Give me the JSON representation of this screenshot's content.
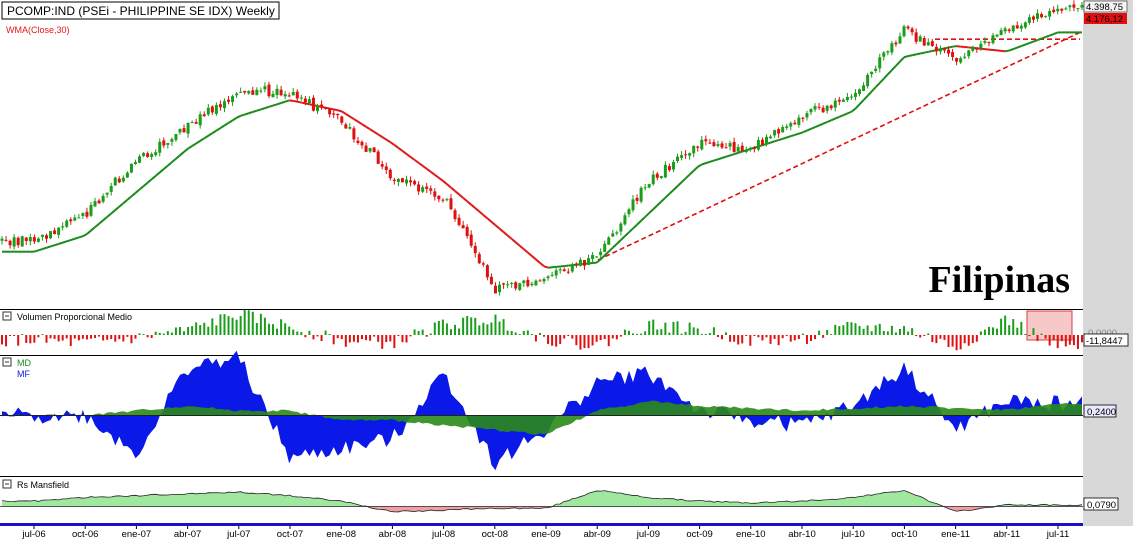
{
  "main_panel": {
    "title": "PCOMP:IND (PSEi - PHILIPPINE SE IDX) Weekly",
    "indicator_label": "WMA(Close,30)",
    "watermark": "Filipinas",
    "price_last": "4.398,75",
    "price_wma": "4.176,12"
  },
  "panels": {
    "volume": {
      "label": "Volumen Proporcional Medio",
      "value_top": "0,0000",
      "value": "-11,8447"
    },
    "mdmf": {
      "label_md": "MD",
      "label_mf": "MF",
      "value": "0,2400"
    },
    "rs": {
      "label": "Rs Mansfield",
      "value": "0,0790"
    }
  },
  "time_axis": [
    "jul-06",
    "oct-06",
    "ene-07",
    "abr-07",
    "jul-07",
    "oct-07",
    "ene-08",
    "abr-08",
    "jul-08",
    "oct-08",
    "ene-09",
    "abr-09",
    "jul-09",
    "oct-09",
    "ene-10",
    "abr-10",
    "jul-10",
    "oct-10",
    "ene-11",
    "abr-11",
    "jul-11"
  ],
  "colors": {
    "up_candle": "#1a9e1a",
    "down_candle": "#e01010",
    "wma_red": "#e01818",
    "wma_green": "#1a8a1a",
    "trendline": "#e01010",
    "md_fill": "#0a18e8",
    "mf_fill": "#2a8a1a",
    "rs_positive": "#a0e8a0",
    "rs_negative": "#f0a0a0",
    "axis_bar": "#1a10c8",
    "price_label_bg": "#e01010",
    "value_label_bg": "#e8e8ff"
  },
  "chart_data": [
    {
      "type": "candlestick",
      "series": [
        {
          "name": "PCOMP:IND",
          "x": [
            "jul-06",
            "oct-06",
            "ene-07",
            "abr-07",
            "jul-07",
            "oct-07",
            "ene-08",
            "abr-08",
            "jul-08",
            "oct-08",
            "ene-09",
            "abr-09",
            "jul-09",
            "oct-09",
            "ene-10",
            "abr-10",
            "jul-10",
            "oct-10",
            "ene-11",
            "abr-11",
            "jul-11"
          ],
          "values": [
            2250,
            2500,
            3000,
            3300,
            3650,
            3620,
            3350,
            2850,
            2650,
            1800,
            1900,
            2100,
            2800,
            3150,
            3100,
            3400,
            3600,
            4200,
            3900,
            4200,
            4398.75
          ]
        },
        {
          "name": "WMA(Close,30)",
          "x": [
            "jul-06",
            "oct-06",
            "ene-07",
            "abr-07",
            "jul-07",
            "oct-07",
            "ene-08",
            "abr-08",
            "jul-08",
            "oct-08",
            "ene-09",
            "abr-09",
            "jul-09",
            "oct-09",
            "ene-10",
            "abr-10",
            "jul-10",
            "oct-10",
            "ene-11",
            "abr-11",
            "jul-11"
          ],
          "values": [
            2150,
            2300,
            2700,
            3100,
            3400,
            3550,
            3450,
            3150,
            2800,
            2400,
            2000,
            2050,
            2500,
            2950,
            3100,
            3250,
            3450,
            3950,
            4050,
            4000,
            4176.12
          ]
        }
      ]
    },
    {
      "type": "bar",
      "title": "Volumen Proporcional Medio",
      "x": [
        "jul-06",
        "oct-06",
        "ene-07",
        "abr-07",
        "jul-07",
        "oct-07",
        "ene-08",
        "abr-08",
        "jul-08",
        "oct-08",
        "ene-09",
        "abr-09",
        "jul-09",
        "oct-09",
        "ene-10",
        "abr-10",
        "jul-10",
        "oct-10",
        "ene-11",
        "abr-11",
        "jul-11"
      ],
      "values": [
        -5,
        -8,
        -3,
        5,
        20,
        8,
        -6,
        -8,
        10,
        15,
        -4,
        -10,
        10,
        5,
        -6,
        -4,
        8,
        6,
        -12,
        15,
        -11.8447
      ]
    },
    {
      "type": "area",
      "series": [
        {
          "name": "MD",
          "x": [
            "jul-06",
            "oct-06",
            "ene-07",
            "abr-07",
            "jul-07",
            "oct-07",
            "ene-08",
            "abr-08",
            "jul-08",
            "oct-08",
            "ene-09",
            "abr-09",
            "jul-09",
            "oct-09",
            "ene-10",
            "abr-10",
            "jul-10",
            "oct-10",
            "ene-11",
            "abr-11",
            "jul-11"
          ],
          "values": [
            0,
            0,
            -0.8,
            1,
            1.2,
            -0.9,
            -0.7,
            -0.5,
            0.9,
            -1,
            -0.3,
            0.7,
            0.9,
            0.1,
            -0.1,
            -0.2,
            0.2,
            1,
            -0.3,
            0.3,
            0.24
          ]
        },
        {
          "name": "MF",
          "x": [
            "jul-06",
            "oct-06",
            "ene-07",
            "abr-07",
            "jul-07",
            "oct-07",
            "ene-08",
            "abr-08",
            "jul-08",
            "oct-08",
            "ene-09",
            "abr-09",
            "jul-09",
            "oct-09",
            "ene-10",
            "abr-10",
            "jul-10",
            "oct-10",
            "ene-11",
            "abr-11",
            "jul-11"
          ],
          "values": [
            0,
            0,
            0.1,
            0.2,
            0.1,
            0.1,
            -0.1,
            -0.1,
            -0.2,
            -0.3,
            -0.4,
            0.1,
            0.3,
            0.2,
            0.15,
            0.1,
            0.15,
            0.2,
            0.15,
            0.12,
            0.24
          ]
        }
      ]
    },
    {
      "type": "area",
      "title": "Rs Mansfield",
      "x": [
        "jul-06",
        "oct-06",
        "ene-07",
        "abr-07",
        "jul-07",
        "oct-07",
        "ene-08",
        "abr-08",
        "jul-08",
        "oct-08",
        "ene-09",
        "abr-09",
        "jul-09",
        "oct-09",
        "ene-10",
        "abr-10",
        "jul-10",
        "oct-10",
        "ene-11",
        "abr-11",
        "jul-11"
      ],
      "values": [
        0.3,
        0.5,
        0.6,
        0.7,
        0.8,
        0.6,
        0.3,
        -0.3,
        -0.2,
        -0.1,
        -0.1,
        0.9,
        0.5,
        0.3,
        0.2,
        0.3,
        0.5,
        0.9,
        -0.3,
        0.1,
        0.079
      ]
    }
  ]
}
